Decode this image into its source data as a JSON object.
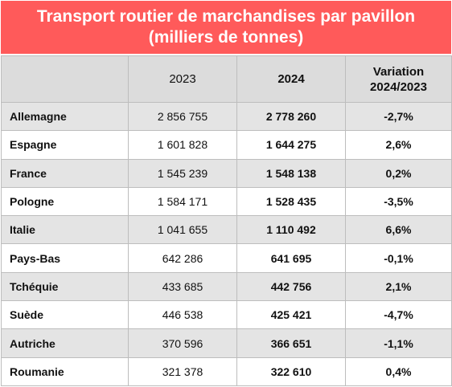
{
  "title": {
    "line1": "Transport routier de marchandises par pavillon",
    "line2": "(milliers de tonnes)"
  },
  "table": {
    "headers": {
      "country": "",
      "y2023": "2023",
      "y2024": "2024",
      "variation_line1": "Variation",
      "variation_line2": "2024/2023"
    },
    "rows": [
      {
        "country": "Allemagne",
        "v2023": "2 856 755",
        "v2024": "2 778 260",
        "variation": "-2,7%"
      },
      {
        "country": "Espagne",
        "v2023": "1 601 828",
        "v2024": "1 644 275",
        "variation": "2,6%"
      },
      {
        "country": "France",
        "v2023": "1 545 239",
        "v2024": "1 548 138",
        "variation": "0,2%"
      },
      {
        "country": "Pologne",
        "v2023": "1 584 171",
        "v2024": "1 528 435",
        "variation": "-3,5%"
      },
      {
        "country": "Italie",
        "v2023": "1 041 655",
        "v2024": "1 110 492",
        "variation": "6,6%"
      },
      {
        "country": "Pays-Bas",
        "v2023": "642 286",
        "v2024": "641 695",
        "variation": "-0,1%"
      },
      {
        "country": "Tchéquie",
        "v2023": "433 685",
        "v2024": "442 756",
        "variation": "2,1%"
      },
      {
        "country": "Suède",
        "v2023": "446 538",
        "v2024": "425 421",
        "variation": "-4,7%"
      },
      {
        "country": "Autriche",
        "v2023": "370 596",
        "v2024": "366 651",
        "variation": "-1,1%"
      },
      {
        "country": "Roumanie",
        "v2023": "321 378",
        "v2024": "322 610",
        "variation": "0,4%"
      }
    ]
  },
  "colors": {
    "title_bg": "#ff5a5a",
    "title_text": "#ffffff",
    "header_bg": "#dcdcdc",
    "row_alt_bg": "#e4e4e4"
  }
}
